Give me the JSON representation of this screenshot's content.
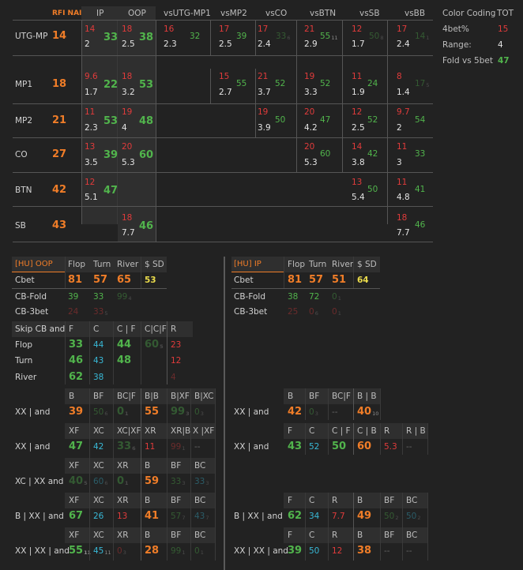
{
  "header": {
    "rfi": "RFI NAI",
    "ip": "IP",
    "oop": "OOP",
    "cols": [
      "vsUTG-MP1",
      "vsMP2",
      "vsCO",
      "vsBTN",
      "vsSB",
      "vsBB"
    ]
  },
  "rows": [
    {
      "label": "UTG-MP",
      "rfi": "14",
      "ip": {
        "r": "14",
        "b": "2",
        "g": "33"
      },
      "oop": {
        "r": "18",
        "b": "2.5",
        "g": "38"
      },
      "cells": [
        {
          "r": "16",
          "b": "2.3",
          "g": "32"
        },
        {
          "r": "17",
          "b": "2.5",
          "g": "39"
        },
        {
          "r": "17",
          "b": "2.4",
          "g": "33",
          "s": "6"
        },
        {
          "r": "21",
          "b": "2.9",
          "g": "55",
          "s": "11"
        },
        {
          "r": "12",
          "b": "1.7",
          "g": "50",
          "s": "8"
        },
        {
          "r": "17",
          "b": "2.4",
          "g": "14",
          "s": "1"
        }
      ]
    },
    {
      "label": "MP1",
      "rfi": "18",
      "ip": {
        "r": "9.6",
        "b": "1.7",
        "g": "22"
      },
      "oop": {
        "r": "18",
        "b": "3.2",
        "g": "53"
      },
      "cells": [
        null,
        {
          "r": "15",
          "b": "2.7",
          "g": "55"
        },
        {
          "r": "21",
          "b": "3.7",
          "g": "52"
        },
        {
          "r": "19",
          "b": "3.3",
          "g": "52"
        },
        {
          "r": "11",
          "b": "1.9",
          "g": "24"
        },
        {
          "r": "8",
          "b": "1.4",
          "g": "17",
          "s": "5"
        }
      ]
    },
    {
      "label": "MP2",
      "rfi": "21",
      "ip": {
        "r": "11",
        "b": "2.3",
        "g": "53"
      },
      "oop": {
        "r": "19",
        "b": "4",
        "g": "48"
      },
      "cells": [
        null,
        null,
        {
          "r": "19",
          "b": "3.9",
          "g": "50"
        },
        {
          "r": "20",
          "b": "4.2",
          "g": "47"
        },
        {
          "r": "12",
          "b": "2.5",
          "g": "52"
        },
        {
          "r": "9.7",
          "b": "2",
          "g": "54"
        }
      ]
    },
    {
      "label": "CO",
      "rfi": "27",
      "ip": {
        "r": "13",
        "b": "3.5",
        "g": "39"
      },
      "oop": {
        "r": "20",
        "b": "5.3",
        "g": "60"
      },
      "cells": [
        null,
        null,
        null,
        {
          "r": "20",
          "b": "5.3",
          "g": "60"
        },
        {
          "r": "14",
          "b": "3.8",
          "g": "42"
        },
        {
          "r": "11",
          "b": "3",
          "g": "33"
        }
      ]
    },
    {
      "label": "BTN",
      "rfi": "42",
      "ip": {
        "r": "12",
        "b": "5.1",
        "g": "47"
      },
      "oop": null,
      "cells": [
        null,
        null,
        null,
        null,
        {
          "r": "13",
          "b": "5.4",
          "g": "50"
        },
        {
          "r": "11",
          "b": "4.8",
          "g": "41"
        }
      ]
    },
    {
      "label": "SB",
      "rfi": "43",
      "ip": null,
      "oop": {
        "r": "18",
        "b": "7.7",
        "g": "46"
      },
      "cells": [
        null,
        null,
        null,
        null,
        null,
        {
          "r": "18",
          "b": "7.7",
          "g": "46"
        }
      ]
    }
  ],
  "legend": {
    "title": "Color Coding",
    "tot": "TOT",
    "items": [
      {
        "label": "4bet%",
        "value": "15"
      },
      {
        "label": "Range:",
        "value": "4"
      },
      {
        "label": "Fold vs 5bet",
        "value": "47"
      }
    ]
  },
  "oop": {
    "title": "[HU] OOP",
    "cols": [
      "Flop",
      "Turn",
      "River",
      "$ SD"
    ],
    "rows": [
      {
        "label": "Cbet",
        "v": [
          "81",
          "57",
          "65",
          "53"
        ]
      },
      {
        "label": "CB-Fold",
        "v": [
          "39",
          "33",
          "99"
        ],
        "s": [
          "",
          "",
          "4"
        ]
      },
      {
        "label": "CB-3bet",
        "v": [
          "24",
          "33"
        ],
        "s": [
          "",
          "5"
        ]
      }
    ]
  },
  "ip": {
    "title": "[HU] IP",
    "cols": [
      "Flop",
      "Turn",
      "River",
      "$ SD"
    ],
    "rows": [
      {
        "label": "Cbet",
        "v": [
          "81",
          "57",
          "51",
          "64"
        ]
      },
      {
        "label": "CB-Fold",
        "v": [
          "38",
          "72",
          "0"
        ],
        "s": [
          "",
          "",
          "1"
        ]
      },
      {
        "label": "CB-3bet",
        "v": [
          "25",
          "0",
          "0"
        ],
        "s": [
          "",
          "6",
          "1"
        ]
      }
    ]
  },
  "skip": {
    "label": "Skip CB and",
    "cols": [
      "F",
      "C",
      "C | F",
      "C|C|F",
      "R"
    ],
    "rows": [
      {
        "label": "Flop",
        "v": [
          "33",
          "44",
          "44",
          "60",
          "23"
        ],
        "s": [
          "",
          "",
          "",
          "5",
          ""
        ]
      },
      {
        "label": "Turn",
        "v": [
          "46",
          "43",
          "48",
          "",
          "12"
        ]
      },
      {
        "label": "River",
        "v": [
          "62",
          "38",
          "",
          "",
          "4"
        ]
      }
    ]
  },
  "oop_lines": [
    {
      "label": "XX | and",
      "cols": [
        "B",
        "BF",
        "BC|F",
        "B|B",
        "B|XF",
        "B|XC"
      ],
      "v": [
        "39",
        "50",
        "0",
        "55",
        "99",
        "0"
      ],
      "s": [
        "",
        "6",
        "1",
        "",
        "3",
        "3"
      ]
    },
    {
      "label": "XX | and",
      "cols": [
        "XF",
        "XC",
        "XC|XF",
        "XR",
        "XR|B",
        "X |XF"
      ],
      "v": [
        "47",
        "42",
        "33",
        "11",
        "99",
        "--"
      ],
      "s": [
        "",
        "",
        "6",
        "",
        "1",
        ""
      ]
    },
    {
      "label": "XC | XX and",
      "cols": [
        "XF",
        "XC",
        "XR",
        "B",
        "BF",
        "BC"
      ],
      "v": [
        "40",
        "60",
        "0",
        "59",
        "33",
        "33"
      ],
      "s": [
        "5",
        "6",
        "1",
        "",
        "3",
        "3"
      ]
    },
    {
      "label": "B | XX | and",
      "cols": [
        "XF",
        "XC",
        "XR",
        "B",
        "BF",
        "BC"
      ],
      "v": [
        "67",
        "26",
        "13",
        "41",
        "57",
        "43"
      ],
      "s": [
        "",
        "",
        "",
        "",
        "7",
        "7"
      ]
    },
    {
      "label": "XX | XX | and",
      "cols": [
        "XF",
        "XC",
        "XR",
        "B",
        "BF",
        "BC"
      ],
      "v": [
        "55",
        "45",
        "0",
        "28",
        "99",
        "0"
      ],
      "s": [
        "11",
        "11",
        "3",
        "",
        "1",
        "1"
      ]
    }
  ],
  "ip_lines": [
    {
      "label": "XX | and",
      "cols": [
        "B",
        "BF",
        "BC|F",
        "B | B"
      ],
      "v": [
        "42",
        "0",
        "--",
        "40"
      ],
      "s": [
        "",
        "3",
        "",
        "10"
      ]
    },
    {
      "label": "XX | and",
      "cols": [
        "F",
        "C",
        "C | F",
        "C | B",
        "R",
        "R | B"
      ],
      "v": [
        "43",
        "52",
        "50",
        "60",
        "5.3",
        "--"
      ]
    },
    {
      "label": "B | XX | and",
      "cols": [
        "F",
        "C",
        "R",
        "B",
        "BF",
        "BC"
      ],
      "v": [
        "62",
        "34",
        "7.7",
        "49",
        "50",
        "50"
      ],
      "s": [
        "",
        "",
        "",
        "",
        "2",
        "2"
      ]
    },
    {
      "label": "XX | XX | and",
      "cols": [
        "F",
        "C",
        "R",
        "B",
        "BF",
        "BC"
      ],
      "v": [
        "39",
        "50",
        "12",
        "38",
        "--",
        "--"
      ]
    }
  ]
}
